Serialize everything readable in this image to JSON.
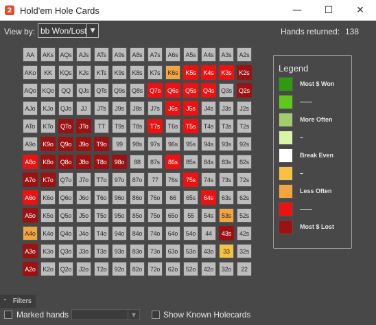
{
  "window": {
    "title": "Hold'em Hole Cards",
    "icon_letter": "2",
    "minimize": "—",
    "maximize": "☐",
    "close": "✕"
  },
  "toolbar": {
    "view_by_label": "View by:",
    "view_by_value": "bb Won/Lost",
    "hands_returned_label": "Hands returned:",
    "hands_returned_value": "138"
  },
  "grid": {
    "ranks": [
      "A",
      "K",
      "Q",
      "J",
      "T",
      "9",
      "8",
      "7",
      "6",
      "5",
      "4",
      "3",
      "2"
    ],
    "rows": [
      [
        "AA",
        "AKs",
        "AQs",
        "AJs",
        "ATs",
        "A9s",
        "A8s",
        "A7s",
        "A6s",
        "A5s",
        "A4s",
        "A3s",
        "A2s"
      ],
      [
        "AKo",
        "KK",
        "KQs",
        "KJs",
        "KTs",
        "K9s",
        "K8s",
        "K7s",
        "K6s",
        "K5s",
        "K4s",
        "K3s",
        "K2s"
      ],
      [
        "AQo",
        "KQo",
        "QQ",
        "QJs",
        "QTs",
        "Q9s",
        "Q8s",
        "Q7s",
        "Q6s",
        "Q5s",
        "Q4s",
        "Q3s",
        "Q2s"
      ],
      [
        "AJo",
        "KJo",
        "QJo",
        "JJ",
        "JTs",
        "J9s",
        "J8s",
        "J7s",
        "J6s",
        "J5s",
        "J4s",
        "J3s",
        "J2s"
      ],
      [
        "ATo",
        "KTo",
        "QTo",
        "JTo",
        "TT",
        "T9s",
        "T8s",
        "T7s",
        "T6s",
        "T5s",
        "T4s",
        "T3s",
        "T2s"
      ],
      [
        "A9o",
        "K9o",
        "Q9o",
        "J9o",
        "T9o",
        "99",
        "98s",
        "97s",
        "96s",
        "95s",
        "94s",
        "93s",
        "92s"
      ],
      [
        "A8o",
        "K8o",
        "Q8o",
        "J8o",
        "T8o",
        "98o",
        "88",
        "87s",
        "86s",
        "85s",
        "84s",
        "83s",
        "82s"
      ],
      [
        "A7o",
        "K7o",
        "Q7o",
        "J7o",
        "T7o",
        "97o",
        "87o",
        "77",
        "76s",
        "75s",
        "74s",
        "73s",
        "72s"
      ],
      [
        "A6o",
        "K6o",
        "Q6o",
        "J6o",
        "T6o",
        "96o",
        "86o",
        "76o",
        "66",
        "65s",
        "64s",
        "63s",
        "62s"
      ],
      [
        "A5o",
        "K5o",
        "Q5o",
        "J5o",
        "T5o",
        "95o",
        "85o",
        "75o",
        "65o",
        "55",
        "54s",
        "53s",
        "52s"
      ],
      [
        "A4o",
        "K4o",
        "Q4o",
        "J4o",
        "T4o",
        "94o",
        "84o",
        "74o",
        "64o",
        "54o",
        "44",
        "43s",
        "42s"
      ],
      [
        "A3o",
        "K3o",
        "Q3o",
        "J3o",
        "T3o",
        "93o",
        "83o",
        "73o",
        "63o",
        "53o",
        "43o",
        "33",
        "32s"
      ],
      [
        "A2o",
        "K2o",
        "Q2o",
        "J2o",
        "T2o",
        "92o",
        "82o",
        "72o",
        "62o",
        "52o",
        "42o",
        "32o",
        "22"
      ]
    ],
    "highlights": {
      "K6s": "orange",
      "K5s": "red",
      "K4s": "red",
      "K3s": "red",
      "K2s": "darkred",
      "Q7s": "red",
      "Q6s": "red",
      "Q5s": "red",
      "Q4s": "red",
      "Q2s": "darkred",
      "J6s": "red",
      "J5s": "red",
      "QTo": "darkred",
      "JTo": "darkred",
      "T7s": "red",
      "T5s": "red",
      "K9o": "darkred",
      "Q9o": "darkred",
      "J9o": "darkred",
      "T9o": "darkred",
      "A8o": "red",
      "K8o": "darkred",
      "Q8o": "darkred",
      "J8o": "darkred",
      "T8o": "darkred",
      "98o": "darkred",
      "86s": "red",
      "A7o": "darkred",
      "K7o": "darkred",
      "75s": "red",
      "A6o": "red",
      "64s": "red",
      "A5o": "darkred",
      "53s": "orange",
      "A4o": "orange",
      "43s": "darkred",
      "A3o": "darkred",
      "33": "yellow",
      "A2o": "darkred"
    }
  },
  "legend": {
    "title": "Legend",
    "items": [
      {
        "label": "Most $ Won",
        "color": "#2e9a10"
      },
      {
        "label": "——",
        "color": "#5ec91a"
      },
      {
        "label": "More Often",
        "color": "#a2cd6e"
      },
      {
        "label": "–",
        "color": "#d8f5a8"
      },
      {
        "label": "Break Even",
        "color": "#ffffff"
      },
      {
        "label": "–",
        "color": "#f5c242"
      },
      {
        "label": "Less Often",
        "color": "#f4a540"
      },
      {
        "label": "——",
        "color": "#ee1111"
      },
      {
        "label": "Most $ Lost",
        "color": "#9c1212"
      }
    ]
  },
  "filters": {
    "chevron": "⌃",
    "label": "Filters"
  },
  "bottom": {
    "marked_hands_label": "Marked hands",
    "marked_hands_value": "",
    "show_known_label": "Show Known Holecards"
  }
}
